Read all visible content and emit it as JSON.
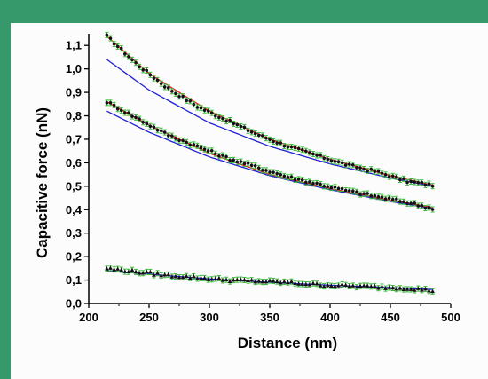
{
  "chart_data": {
    "type": "scatter",
    "title": "",
    "xlabel": "Distance (nm)",
    "ylabel": "Capacitive force (nN)",
    "xlim": [
      200,
      500
    ],
    "ylim": [
      0.0,
      1.15
    ],
    "x_ticks": [
      200,
      250,
      300,
      350,
      400,
      450,
      500
    ],
    "x_tick_labels": [
      "200",
      "250",
      "300",
      "350",
      "400",
      "450",
      "500"
    ],
    "y_ticks": [
      0.0,
      0.1,
      0.2,
      0.3,
      0.4,
      0.5,
      0.6,
      0.7,
      0.8,
      0.9,
      1.0,
      1.1
    ],
    "y_tick_labels": [
      "0,0",
      "0,1",
      "0,2",
      "0,3",
      "0,4",
      "0,5",
      "0,6",
      "0,7",
      "0,8",
      "0,9",
      "1,0",
      "1,1"
    ],
    "grid": false,
    "legend": "none",
    "colors": {
      "points": "#111111",
      "error_bars": "#3db83d",
      "fit_red": "#e02020",
      "fit_blue": "#2020d8"
    },
    "series": [
      {
        "marker": "circle",
        "x": [
          215,
          240,
          265,
          290,
          315,
          340,
          365,
          390,
          415,
          440,
          465,
          485
        ],
        "y": [
          1.14,
          1.02,
          0.92,
          0.84,
          0.78,
          0.72,
          0.67,
          0.63,
          0.59,
          0.56,
          0.52,
          0.505
        ],
        "fits": [
          {
            "color": "red",
            "x": [
              215,
              250,
              300,
              350,
              400,
              450,
              485
            ],
            "y": [
              1.14,
              0.98,
              0.82,
              0.7,
              0.615,
              0.545,
              0.505
            ]
          },
          {
            "color": "blue",
            "x": [
              215,
              250,
              300,
              350,
              400,
              450,
              485
            ],
            "y": [
              1.04,
              0.91,
              0.77,
              0.67,
              0.595,
              0.535,
              0.5
            ]
          }
        ]
      },
      {
        "marker": "circle",
        "x": [
          215,
          240,
          265,
          290,
          315,
          340,
          365,
          390,
          415,
          440,
          465,
          485
        ],
        "y": [
          0.86,
          0.79,
          0.72,
          0.67,
          0.62,
          0.58,
          0.54,
          0.51,
          0.48,
          0.455,
          0.43,
          0.405
        ],
        "fits": [
          {
            "color": "red",
            "x": [
              215,
              250,
              300,
              350,
              400,
              450,
              485
            ],
            "y": [
              0.86,
              0.76,
              0.64,
              0.55,
              0.49,
              0.44,
              0.41
            ]
          },
          {
            "color": "blue",
            "x": [
              215,
              250,
              300,
              350,
              400,
              450,
              485
            ],
            "y": [
              0.82,
              0.73,
              0.625,
              0.545,
              0.485,
              0.435,
              0.405
            ]
          }
        ]
      },
      {
        "marker": "triangle",
        "x": [
          215,
          240,
          265,
          290,
          315,
          340,
          365,
          390,
          415,
          440,
          465,
          485
        ],
        "y": [
          0.15,
          0.135,
          0.12,
          0.11,
          0.1,
          0.095,
          0.09,
          0.08,
          0.075,
          0.07,
          0.065,
          0.055
        ],
        "fits": [
          {
            "color": "blue",
            "x": [
              215,
              250,
              300,
              350,
              400,
              450,
              485
            ],
            "y": [
              0.14,
              0.125,
              0.105,
              0.09,
              0.078,
              0.068,
              0.06
            ]
          }
        ]
      }
    ]
  }
}
